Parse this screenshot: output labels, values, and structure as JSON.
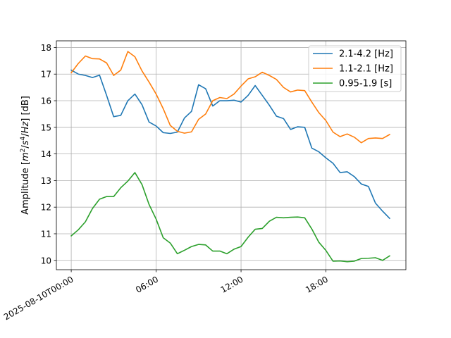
{
  "chart_data": {
    "type": "line",
    "x_unit": "hours since 2025-08-10T00:00",
    "ylabel": "Amplitude [$m^2/s^4/Hz$] [dB]",
    "ylim": [
      9.65,
      18.25
    ],
    "xlim": [
      -1.05,
      23.65
    ],
    "yticks": [
      10,
      11,
      12,
      13,
      14,
      15,
      16,
      17,
      18
    ],
    "xticks": [
      {
        "value": 0,
        "label": "2025-08-10T00:00"
      },
      {
        "value": 6,
        "label": "06:00"
      },
      {
        "value": 12,
        "label": "12:00"
      },
      {
        "value": 18,
        "label": "18:00"
      }
    ],
    "grid": true,
    "legend_position": "top-right",
    "x": [
      0,
      0.5,
      1,
      1.5,
      2,
      2.5,
      3,
      3.5,
      4,
      4.5,
      5,
      5.5,
      6,
      6.5,
      7,
      7.5,
      8,
      8.5,
      9,
      9.5,
      10,
      10.5,
      11,
      11.5,
      12,
      12.5,
      13,
      13.5,
      14,
      14.5,
      15,
      15.5,
      16,
      16.5,
      17,
      17.5,
      18,
      18.5,
      19,
      19.5,
      20,
      20.5,
      21,
      21.5,
      22,
      22.5
    ],
    "series": [
      {
        "name": "2.1-4.2 [Hz]",
        "color": "#1f77b4",
        "values": [
          17.15,
          17.0,
          16.95,
          16.87,
          16.96,
          16.2,
          15.4,
          15.45,
          16.0,
          16.25,
          15.85,
          15.2,
          15.05,
          14.8,
          14.77,
          14.82,
          15.35,
          15.6,
          16.6,
          16.45,
          15.8,
          16.0,
          16.0,
          16.02,
          15.95,
          16.2,
          16.57,
          16.2,
          15.83,
          15.42,
          15.33,
          14.92,
          15.02,
          15.0,
          14.22,
          14.08,
          13.85,
          13.65,
          13.3,
          13.33,
          13.15,
          12.87,
          12.78,
          12.15,
          11.85,
          11.58
        ]
      },
      {
        "name": "1.1-2.1 [Hz]",
        "color": "#ff7f0e",
        "values": [
          17.05,
          17.4,
          17.68,
          17.58,
          17.57,
          17.42,
          16.95,
          17.15,
          17.85,
          17.65,
          17.12,
          16.7,
          16.25,
          15.7,
          15.07,
          14.85,
          14.78,
          14.83,
          15.3,
          15.5,
          16.0,
          16.12,
          16.08,
          16.25,
          16.55,
          16.82,
          16.9,
          17.07,
          16.95,
          16.8,
          16.5,
          16.33,
          16.4,
          16.38,
          15.95,
          15.55,
          15.25,
          14.82,
          14.65,
          14.75,
          14.63,
          14.42,
          14.58,
          14.6,
          14.58,
          14.73
        ]
      },
      {
        "name": "0.95-1.9 [s]",
        "color": "#2ca02c",
        "values": [
          10.92,
          11.15,
          11.45,
          11.95,
          12.3,
          12.4,
          12.4,
          12.73,
          12.98,
          13.3,
          12.85,
          12.1,
          11.55,
          10.85,
          10.65,
          10.25,
          10.38,
          10.52,
          10.6,
          10.58,
          10.35,
          10.35,
          10.25,
          10.42,
          10.52,
          10.87,
          11.17,
          11.2,
          11.47,
          11.62,
          11.6,
          11.62,
          11.63,
          11.6,
          11.18,
          10.68,
          10.37,
          9.97,
          9.98,
          9.95,
          9.97,
          10.07,
          10.08,
          10.1,
          10.0,
          10.17
        ]
      }
    ]
  }
}
